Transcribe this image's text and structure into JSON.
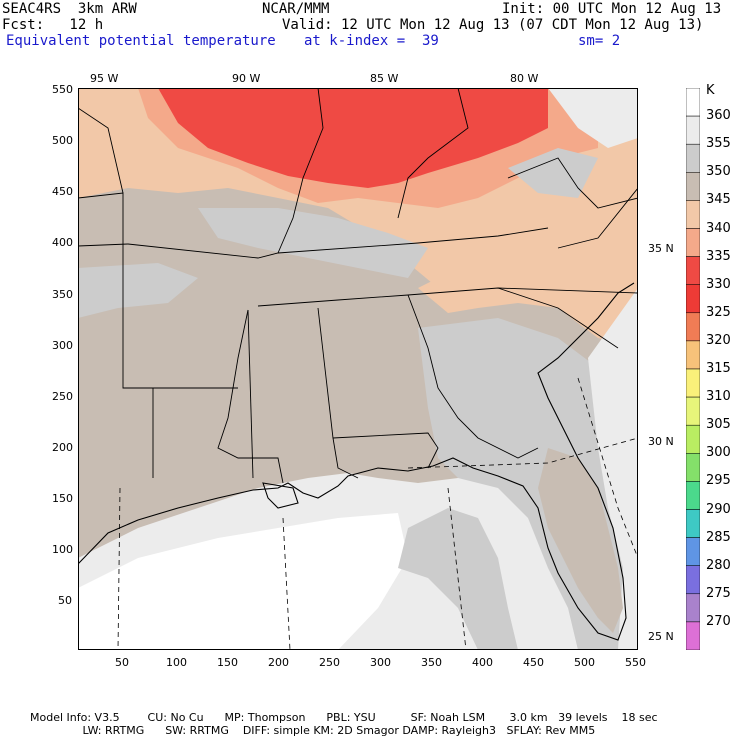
{
  "header": {
    "title": "SEAC4RS  3km ARW",
    "org": "NCAR/MMM",
    "init": "Init: 00 UTC Mon 12 Aug 13",
    "fcst": "Fcst:   12 h",
    "valid": "Valid: 12 UTC Mon 12 Aug 13 (07 CDT Mon 12 Aug 13)",
    "field": "Equivalent potential temperature",
    "level": "at k-index =  39",
    "smooth": "sm= 2"
  },
  "legend": {
    "unit": "K",
    "levels": [
      "360",
      "355",
      "350",
      "345",
      "340",
      "335",
      "330",
      "325",
      "320",
      "315",
      "310",
      "305",
      "300",
      "295",
      "290",
      "285",
      "280",
      "275",
      "270"
    ],
    "colors": [
      "#ffffff",
      "#ececec",
      "#cccccc",
      "#c8bdb3",
      "#f2c8a8",
      "#f4a98a",
      "#ef4a44",
      "#ee3b36",
      "#f07c55",
      "#f7c27a",
      "#faf07a",
      "#e7f57a",
      "#b9ed62",
      "#84e06a",
      "#4bd98c",
      "#3ec9c4",
      "#5f95e5",
      "#7a6fdf",
      "#a982cc",
      "#dd70d6"
    ]
  },
  "axes": {
    "x_ticks": [
      "50",
      "100",
      "150",
      "200",
      "250",
      "300",
      "350",
      "400",
      "450",
      "500",
      "550"
    ],
    "y_ticks": [
      "550",
      "500",
      "450",
      "400",
      "350",
      "300",
      "250",
      "200",
      "150",
      "100",
      "50"
    ],
    "lon_labels": [
      "95 W",
      "90 W",
      "85 W",
      "80 W"
    ],
    "lat_labels": [
      "35 N",
      "30 N",
      "25 N"
    ]
  },
  "footer": {
    "line1": "Model Info: V3.5        CU: No Cu      MP: Thompson      PBL: YSU          SF: Noah LSM       3.0 km   39 levels    18 sec",
    "line2": "               LW: RRTMG      SW: RRTMG    DIFF: simple KM: 2D Smagor DAMP: Rayleigh3   SFLAY: Rev MM5"
  }
}
